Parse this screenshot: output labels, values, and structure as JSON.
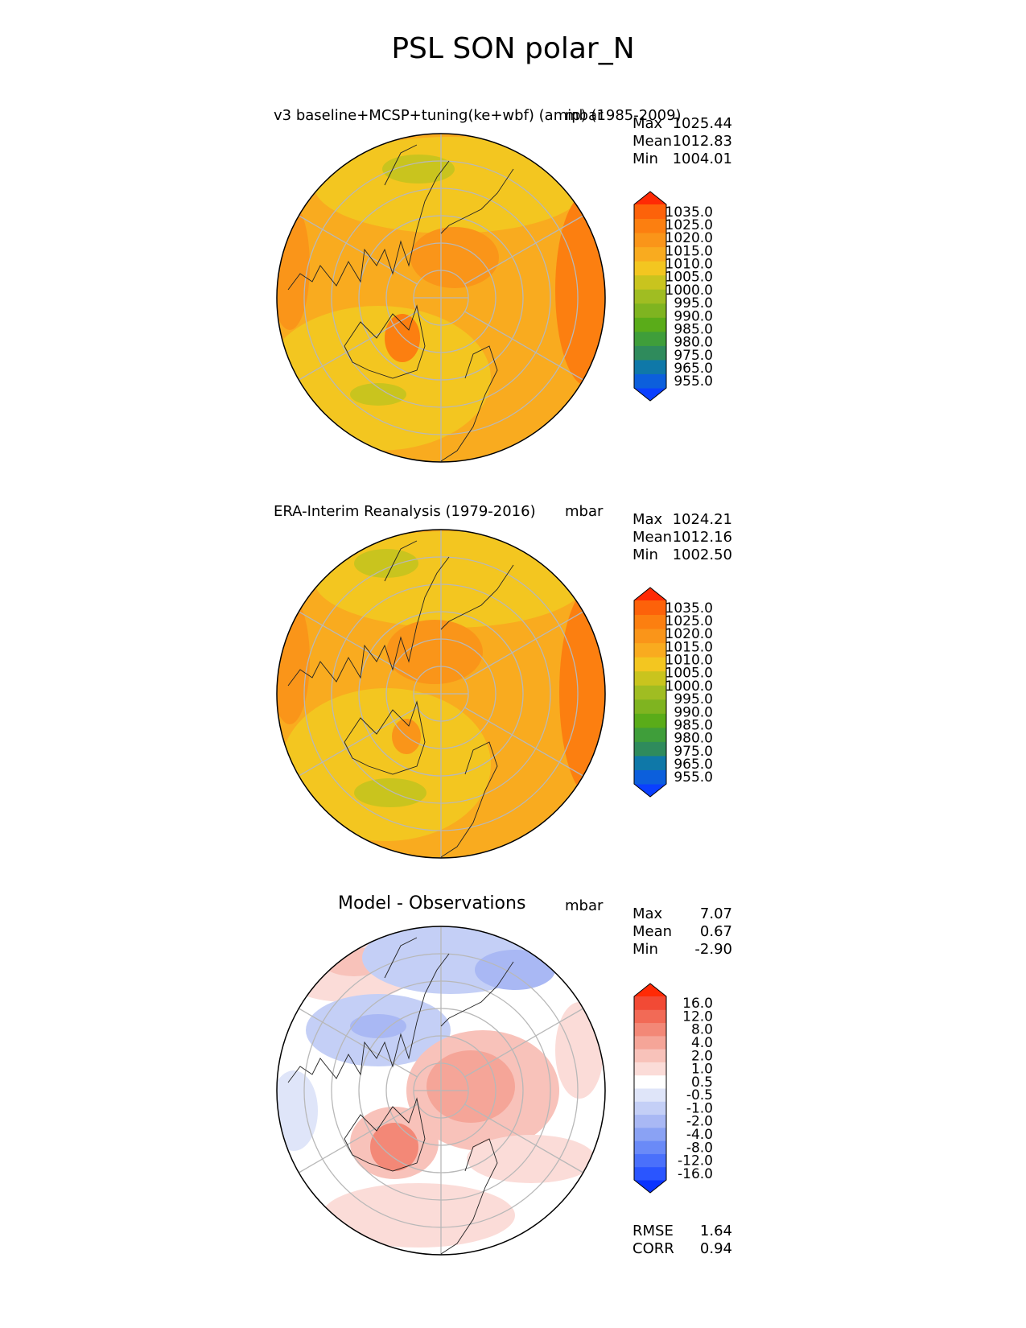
{
  "title": "PSL SON polar_N",
  "panels": [
    {
      "id": "model",
      "title": "v3 baseline+MCSP+tuning(ke+wbf) (amip) (1985-2009)",
      "units": "mbar",
      "stats": [
        {
          "label": "Max",
          "value": "1025.44"
        },
        {
          "label": "Mean",
          "value": "1012.83"
        },
        {
          "label": "Min",
          "value": "1004.01"
        }
      ],
      "colorbar": {
        "colors": [
          "#0a3fff",
          "#0c5fdc",
          "#0f78a8",
          "#2f8b5c",
          "#3f9e3a",
          "#5aac19",
          "#7fb420",
          "#a0bd22",
          "#c9c41e",
          "#f3c620",
          "#f9ab1f",
          "#fa9519",
          "#fc7f10",
          "#fd620a",
          "#ff2a05"
        ],
        "labels": [
          "1035.0",
          "1025.0",
          "1020.0",
          "1015.0",
          "1010.0",
          "1005.0",
          "1000.0",
          "995.0",
          "990.0",
          "985.0",
          "980.0",
          "975.0",
          "965.0",
          "955.0"
        ]
      }
    },
    {
      "id": "obs",
      "title": "ERA-Interim Reanalysis (1979-2016)",
      "units": "mbar",
      "stats": [
        {
          "label": "Max",
          "value": "1024.21"
        },
        {
          "label": "Mean",
          "value": "1012.16"
        },
        {
          "label": "Min",
          "value": "1002.50"
        }
      ],
      "colorbar": {
        "colors": [
          "#0a3fff",
          "#0c5fdc",
          "#0f78a8",
          "#2f8b5c",
          "#3f9e3a",
          "#5aac19",
          "#7fb420",
          "#a0bd22",
          "#c9c41e",
          "#f3c620",
          "#f9ab1f",
          "#fa9519",
          "#fc7f10",
          "#fd620a",
          "#ff2a05"
        ],
        "labels": [
          "1035.0",
          "1025.0",
          "1020.0",
          "1015.0",
          "1010.0",
          "1005.0",
          "1000.0",
          "995.0",
          "990.0",
          "985.0",
          "980.0",
          "975.0",
          "965.0",
          "955.0"
        ]
      }
    },
    {
      "id": "diff",
      "title": "Model - Observations",
      "units": "mbar",
      "stats": [
        {
          "label": "Max",
          "value": "7.07"
        },
        {
          "label": "Mean",
          "value": "0.67"
        },
        {
          "label": "Min",
          "value": "-2.90"
        }
      ],
      "extra_stats": [
        {
          "label": "RMSE",
          "value": "1.64"
        },
        {
          "label": "CORR",
          "value": "0.94"
        }
      ],
      "colorbar": {
        "colors": [
          "#0a33ff",
          "#2a55ff",
          "#4a70fb",
          "#6a8af7",
          "#8aa2f4",
          "#a9b8f4",
          "#c4cff6",
          "#dfe5f9",
          "#ffffff",
          "#fbdcd8",
          "#f8c2ba",
          "#f5a598",
          "#f38877",
          "#f26a56",
          "#f24a35",
          "#ff2a05"
        ],
        "labels": [
          "16.0",
          "12.0",
          "8.0",
          "4.0",
          "2.0",
          "1.0",
          "0.5",
          "-0.5",
          "-1.0",
          "-2.0",
          "-4.0",
          "-8.0",
          "-12.0",
          "-16.0"
        ]
      }
    }
  ],
  "chart_data": [
    {
      "type": "heatmap",
      "projection": "north polar stereographic",
      "title": "v3 baseline+MCSP+tuning(ke+wbf) (amip) (1985-2009)",
      "units": "mbar",
      "levels": [
        955,
        965,
        975,
        980,
        985,
        990,
        995,
        1000,
        1005,
        1010,
        1015,
        1020,
        1025,
        1035
      ],
      "max": 1025.44,
      "mean": 1012.83,
      "min": 1004.01
    },
    {
      "type": "heatmap",
      "projection": "north polar stereographic",
      "title": "ERA-Interim Reanalysis (1979-2016)",
      "units": "mbar",
      "levels": [
        955,
        965,
        975,
        980,
        985,
        990,
        995,
        1000,
        1005,
        1010,
        1015,
        1020,
        1025,
        1035
      ],
      "max": 1024.21,
      "mean": 1012.16,
      "min": 1002.5
    },
    {
      "type": "heatmap",
      "projection": "north polar stereographic",
      "title": "Model - Observations",
      "units": "mbar",
      "levels": [
        -16,
        -12,
        -8,
        -4,
        -2,
        -1,
        -0.5,
        0.5,
        1,
        2,
        4,
        8,
        12,
        16
      ],
      "max": 7.07,
      "mean": 0.67,
      "min": -2.9,
      "rmse": 1.64,
      "corr": 0.94
    }
  ]
}
